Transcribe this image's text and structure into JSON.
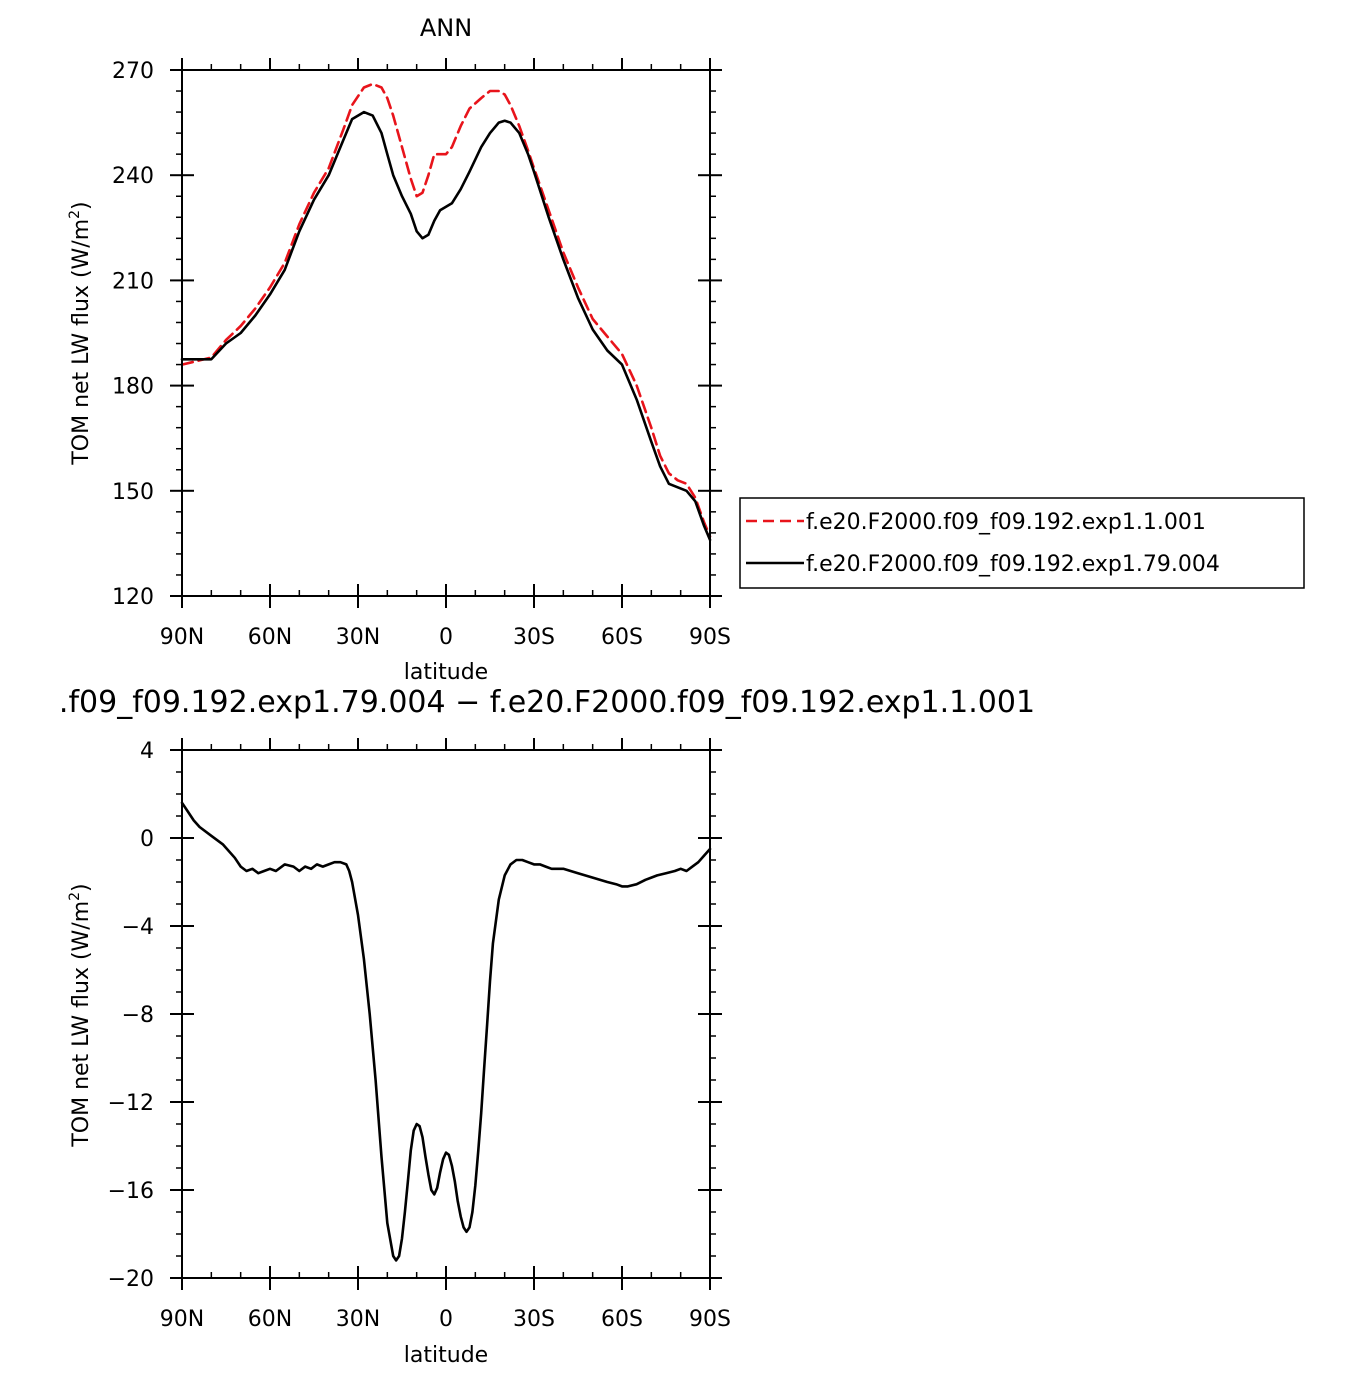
{
  "chart_data": [
    {
      "type": "line",
      "title": "ANN",
      "xlabel": "latitude",
      "ylabel": "TOM net LW flux (W/m",
      "ylabel_sup": "2",
      "ylabel_end": ")",
      "xlim": [
        90,
        -90
      ],
      "ylim": [
        120,
        270
      ],
      "x_ticks": [
        90,
        60,
        30,
        0,
        -30,
        -60,
        -90
      ],
      "x_tick_labels": [
        "90N",
        "60N",
        "30N",
        "0",
        "30S",
        "60S",
        "90S"
      ],
      "y_ticks": [
        120,
        150,
        180,
        210,
        240,
        270
      ],
      "y_tick_labels": [
        "120",
        "150",
        "180",
        "210",
        "240",
        "270"
      ],
      "legend": "right",
      "series": [
        {
          "name": "f.e20.F2000.f09_f09.192.exp1.1.001",
          "color": "#e8141b",
          "dash": "dashed",
          "x": [
            90,
            85,
            80,
            75,
            70,
            65,
            60,
            55,
            50,
            45,
            40,
            35,
            32,
            28,
            25,
            22,
            20,
            18,
            15,
            12,
            10,
            8,
            6,
            4,
            2,
            0,
            -2,
            -5,
            -8,
            -12,
            -15,
            -18,
            -20,
            -22,
            -25,
            -28,
            -30,
            -35,
            -40,
            -45,
            -50,
            -55,
            -60,
            -65,
            -70,
            -73,
            -76,
            -79,
            -82,
            -85,
            -88,
            -90
          ],
          "y": [
            186,
            187,
            188,
            193,
            197,
            202,
            208,
            215,
            226,
            235,
            242,
            253,
            260,
            265,
            266,
            265,
            262,
            257,
            248,
            239,
            234,
            235,
            240,
            246,
            246,
            246,
            248,
            254,
            259,
            262,
            264,
            264,
            263,
            260,
            254,
            247,
            242,
            230,
            218,
            208,
            199,
            194,
            189,
            180,
            168,
            160,
            155,
            153,
            152,
            148,
            141,
            137
          ]
        },
        {
          "name": "f.e20.F2000.f09_f09.192.exp1.79.004",
          "color": "#000000",
          "dash": "solid",
          "x": [
            90,
            85,
            80,
            75,
            70,
            65,
            60,
            55,
            50,
            45,
            40,
            35,
            32,
            28,
            25,
            22,
            20,
            18,
            15,
            12,
            10,
            8,
            6,
            4,
            2,
            0,
            -2,
            -5,
            -8,
            -12,
            -15,
            -18,
            -20,
            -22,
            -25,
            -28,
            -30,
            -35,
            -40,
            -45,
            -50,
            -55,
            -60,
            -65,
            -70,
            -73,
            -76,
            -79,
            -82,
            -85,
            -88,
            -90
          ],
          "y": [
            187.5,
            187.5,
            187.5,
            192,
            195,
            200,
            206,
            213,
            224,
            233,
            240,
            250,
            256,
            258,
            257,
            252,
            246,
            240,
            234,
            229,
            224,
            222,
            223,
            227,
            230,
            231,
            232,
            236,
            241,
            248,
            252,
            255,
            255.5,
            255,
            252,
            246,
            241,
            228,
            216,
            205,
            196,
            190,
            186,
            176,
            164,
            157,
            152,
            151,
            150,
            147,
            140,
            136
          ]
        }
      ]
    },
    {
      "type": "line",
      "title": ".f09_f09.192.exp1.79.004 − f.e20.F2000.f09_f09.192.exp1.1.001",
      "xlabel": "latitude",
      "ylabel": "TOM net LW flux (W/m",
      "ylabel_sup": "2",
      "ylabel_end": ")",
      "xlim": [
        90,
        -90
      ],
      "ylim": [
        -20,
        4
      ],
      "x_ticks": [
        90,
        60,
        30,
        0,
        -30,
        -60,
        -90
      ],
      "x_tick_labels": [
        "90N",
        "60N",
        "30N",
        "0",
        "30S",
        "60S",
        "90S"
      ],
      "y_ticks": [
        4,
        0,
        -4,
        -8,
        -12,
        -16,
        -20
      ],
      "y_tick_labels": [
        "4",
        "0",
        "−4",
        "−8",
        "−12",
        "−16",
        "−20"
      ],
      "series": [
        {
          "color": "#000000",
          "dash": "solid",
          "x": [
            90,
            88,
            86,
            84,
            80,
            76,
            72,
            70,
            68,
            66,
            64,
            62,
            60,
            58,
            55,
            52,
            50,
            48,
            46,
            44,
            42,
            40,
            38,
            36,
            34,
            33,
            32,
            30,
            28,
            26,
            24,
            22,
            20,
            18,
            17,
            16,
            15,
            14,
            13,
            12,
            11,
            10,
            9,
            8,
            7,
            6,
            5,
            4,
            3,
            2,
            1,
            0,
            -1,
            -2,
            -3,
            -4,
            -5,
            -6,
            -7,
            -8,
            -9,
            -10,
            -11,
            -12,
            -13,
            -14,
            -15,
            -16,
            -18,
            -20,
            -22,
            -24,
            -26,
            -28,
            -30,
            -32,
            -34,
            -36,
            -38,
            -40,
            -45,
            -50,
            -55,
            -58,
            -60,
            -62,
            -65,
            -68,
            -70,
            -72,
            -75,
            -78,
            -80,
            -82,
            -84,
            -86,
            -88,
            -90
          ],
          "y": [
            1.6,
            1.2,
            0.8,
            0.5,
            0.1,
            -0.3,
            -0.9,
            -1.3,
            -1.5,
            -1.4,
            -1.6,
            -1.5,
            -1.4,
            -1.5,
            -1.2,
            -1.3,
            -1.5,
            -1.3,
            -1.4,
            -1.2,
            -1.3,
            -1.2,
            -1.1,
            -1.1,
            -1.2,
            -1.5,
            -2.0,
            -3.5,
            -5.5,
            -8.0,
            -11.0,
            -14.5,
            -17.5,
            -19.0,
            -19.2,
            -19.0,
            -18.2,
            -17.0,
            -15.6,
            -14.2,
            -13.3,
            -13.0,
            -13.1,
            -13.6,
            -14.5,
            -15.3,
            -16.0,
            -16.2,
            -15.9,
            -15.2,
            -14.6,
            -14.3,
            -14.4,
            -14.9,
            -15.6,
            -16.5,
            -17.2,
            -17.7,
            -17.9,
            -17.7,
            -17.0,
            -15.8,
            -14.2,
            -12.5,
            -10.5,
            -8.5,
            -6.5,
            -4.8,
            -2.8,
            -1.7,
            -1.2,
            -1.0,
            -1.0,
            -1.1,
            -1.2,
            -1.2,
            -1.3,
            -1.4,
            -1.4,
            -1.4,
            -1.6,
            -1.8,
            -2.0,
            -2.1,
            -2.2,
            -2.2,
            -2.1,
            -1.9,
            -1.8,
            -1.7,
            -1.6,
            -1.5,
            -1.4,
            -1.5,
            -1.3,
            -1.1,
            -0.8,
            -0.5
          ]
        }
      ]
    }
  ]
}
